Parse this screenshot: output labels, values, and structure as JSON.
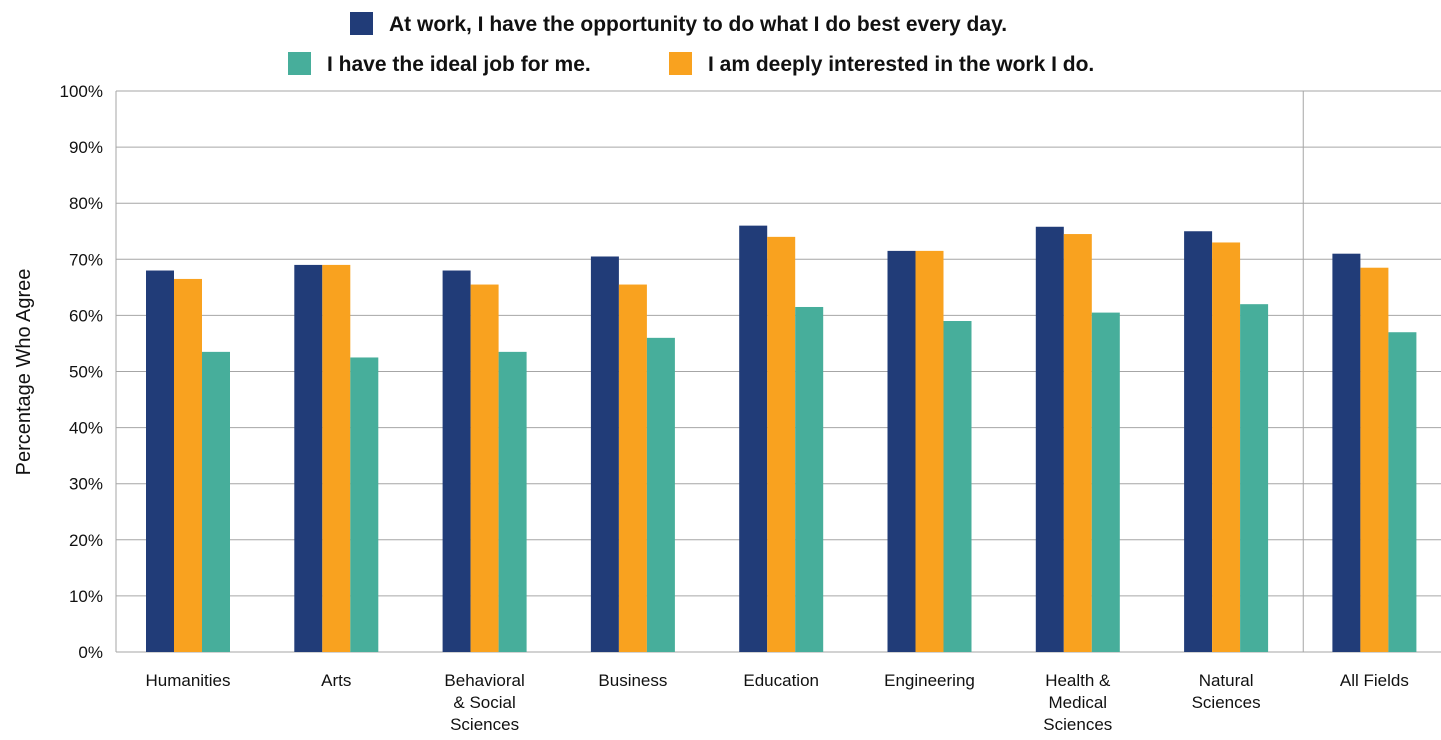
{
  "chart_data": {
    "type": "bar",
    "title": "",
    "xlabel": "",
    "ylabel": "Percentage Who Agree",
    "ylim": [
      0,
      100
    ],
    "yticks": [
      "0%",
      "10%",
      "20%",
      "30%",
      "40%",
      "50%",
      "60%",
      "70%",
      "80%",
      "90%",
      "100%"
    ],
    "grid": true,
    "legend_position": "top",
    "categories": [
      [
        "Humanities"
      ],
      [
        "Arts"
      ],
      [
        "Behavioral",
        "& Social",
        "Sciences"
      ],
      [
        "Business"
      ],
      [
        "Education"
      ],
      [
        "Engineering"
      ],
      [
        "Health &",
        "Medical",
        "Sciences"
      ],
      [
        "Natural",
        "Sciences"
      ],
      [
        "All Fields"
      ]
    ],
    "series": [
      {
        "name": "At work, I have the opportunity to do what I do best every day.",
        "color": "#213c78",
        "values": [
          68,
          69,
          68,
          70.5,
          76,
          71.5,
          75.8,
          75,
          71
        ]
      },
      {
        "name": "I am deeply interested in the work I do.",
        "color": "#f9a21f",
        "values": [
          66.5,
          69,
          65.5,
          65.5,
          74,
          71.5,
          74.5,
          73,
          68.5
        ]
      },
      {
        "name": "I have the ideal job for me.",
        "color": "#47ae9b",
        "values": [
          53.5,
          52.5,
          53.5,
          56,
          61.5,
          59,
          60.5,
          62,
          57
        ]
      }
    ],
    "separator_before_category_index": 8
  }
}
